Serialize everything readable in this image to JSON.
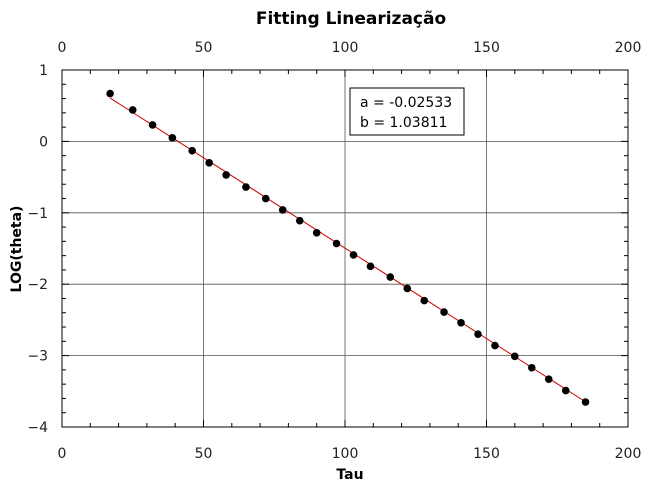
{
  "chart_data": {
    "type": "scatter",
    "title": "Fitting Linearização",
    "xlabel": "Tau",
    "ylabel": "LOG(theta)",
    "xlim": [
      0,
      200
    ],
    "ylim": [
      -4,
      1
    ],
    "xticks": [
      "0",
      "50",
      "100",
      "150",
      "200"
    ],
    "yticks": [
      "1",
      "0",
      "−1",
      "−2",
      "−3",
      "−4"
    ],
    "grid": true,
    "annotation": [
      "a = -0.02533",
      "b = 1.03811"
    ],
    "fit": {
      "slope": -0.02533,
      "intercept": 1.03811,
      "x_range": [
        17,
        185
      ],
      "color": "#cc0000"
    },
    "points": {
      "color": "#000000",
      "x": [
        17,
        25,
        32,
        39,
        46,
        52,
        58,
        65,
        72,
        78,
        84,
        90,
        97,
        103,
        109,
        116,
        122,
        128,
        135,
        141,
        147,
        153,
        160,
        166,
        172,
        178,
        185
      ],
      "y": [
        0.67,
        0.44,
        0.23,
        0.05,
        -0.13,
        -0.3,
        -0.47,
        -0.64,
        -0.8,
        -0.96,
        -1.11,
        -1.28,
        -1.43,
        -1.59,
        -1.75,
        -1.9,
        -2.06,
        -2.23,
        -2.39,
        -2.54,
        -2.7,
        -2.86,
        -3.01,
        -3.17,
        -3.33,
        -3.49,
        -3.65
      ]
    }
  }
}
